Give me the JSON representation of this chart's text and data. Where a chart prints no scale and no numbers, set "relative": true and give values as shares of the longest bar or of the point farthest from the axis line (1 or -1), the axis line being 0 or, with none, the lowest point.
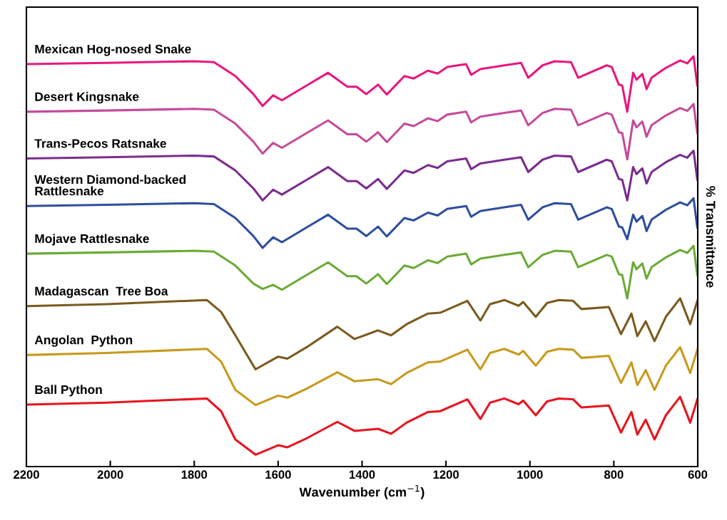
{
  "chart_data": {
    "type": "line",
    "relative": true,
    "xlabel": "Wavenumber (cm$^{−1}$)",
    "y2label": "% Transmittance",
    "xlim": [
      2200,
      600
    ],
    "xticks": [
      2200,
      2000,
      1800,
      1600,
      1400,
      1200,
      1000,
      800,
      600
    ],
    "grid": false,
    "marker": "none",
    "line_style": "solid",
    "series": [
      {
        "name": "Mexican Hog-nosed Snake",
        "color": "#e8177f",
        "x": [
          2200,
          2008,
          1800,
          1753,
          1702,
          1659,
          1637,
          1612,
          1591,
          1532,
          1481,
          1435,
          1413,
          1390,
          1362,
          1341,
          1299,
          1277,
          1243,
          1220,
          1197,
          1152,
          1140,
          1118,
          1061,
          1021,
          1004,
          970,
          941,
          902,
          885,
          817,
          805,
          788,
          780,
          768,
          754,
          746,
          732,
          722,
          710,
          676,
          642,
          625,
          610,
          601
        ],
        "values": [
          0.981,
          0.984,
          0.988,
          0.986,
          0.952,
          0.908,
          0.879,
          0.905,
          0.893,
          0.929,
          0.96,
          0.926,
          0.926,
          0.908,
          0.931,
          0.907,
          0.952,
          0.946,
          0.965,
          0.958,
          0.974,
          0.981,
          0.955,
          0.969,
          0.978,
          0.984,
          0.948,
          0.978,
          0.988,
          0.986,
          0.948,
          0.978,
          0.974,
          0.931,
          0.929,
          0.865,
          0.96,
          0.943,
          0.957,
          0.92,
          0.948,
          0.972,
          0.99,
          0.983,
          1.0,
          0.929
        ]
      },
      {
        "name": "Desert Kingsnake",
        "color": "#c54b9b",
        "x": [
          2200,
          2008,
          1800,
          1753,
          1702,
          1659,
          1637,
          1612,
          1591,
          1532,
          1481,
          1435,
          1413,
          1390,
          1362,
          1341,
          1299,
          1277,
          1243,
          1220,
          1197,
          1152,
          1140,
          1118,
          1061,
          1021,
          1004,
          970,
          941,
          902,
          885,
          817,
          805,
          788,
          780,
          768,
          754,
          746,
          732,
          722,
          710,
          676,
          642,
          625,
          610,
          601
        ],
        "values": [
          0.865,
          0.868,
          0.872,
          0.87,
          0.836,
          0.792,
          0.763,
          0.789,
          0.777,
          0.813,
          0.844,
          0.81,
          0.81,
          0.792,
          0.815,
          0.791,
          0.836,
          0.83,
          0.849,
          0.842,
          0.858,
          0.865,
          0.839,
          0.853,
          0.862,
          0.868,
          0.832,
          0.862,
          0.872,
          0.87,
          0.832,
          0.862,
          0.858,
          0.815,
          0.813,
          0.749,
          0.844,
          0.827,
          0.841,
          0.804,
          0.832,
          0.856,
          0.874,
          0.867,
          0.884,
          0.813
        ]
      },
      {
        "name": "Trans-Pecos Ratsnake",
        "color": "#7b2d8e",
        "x": [
          2200,
          2008,
          1800,
          1753,
          1702,
          1659,
          1637,
          1612,
          1591,
          1532,
          1481,
          1435,
          1413,
          1390,
          1362,
          1341,
          1299,
          1277,
          1243,
          1220,
          1197,
          1152,
          1140,
          1118,
          1061,
          1021,
          1004,
          970,
          941,
          902,
          885,
          817,
          805,
          788,
          780,
          768,
          754,
          746,
          732,
          722,
          710,
          676,
          642,
          625,
          610,
          601
        ],
        "values": [
          0.751,
          0.754,
          0.758,
          0.756,
          0.722,
          0.678,
          0.649,
          0.675,
          0.663,
          0.699,
          0.73,
          0.696,
          0.696,
          0.678,
          0.701,
          0.677,
          0.722,
          0.716,
          0.735,
          0.728,
          0.744,
          0.751,
          0.725,
          0.739,
          0.748,
          0.754,
          0.718,
          0.748,
          0.758,
          0.756,
          0.718,
          0.748,
          0.744,
          0.701,
          0.699,
          0.649,
          0.73,
          0.713,
          0.727,
          0.69,
          0.718,
          0.742,
          0.76,
          0.753,
          0.77,
          0.699
        ]
      },
      {
        "name": "Western Diamond-backed\nRattlesnake",
        "color": "#2e4e9e",
        "x": [
          2200,
          2008,
          1800,
          1753,
          1702,
          1659,
          1637,
          1612,
          1591,
          1532,
          1481,
          1435,
          1413,
          1390,
          1362,
          1341,
          1299,
          1277,
          1243,
          1220,
          1197,
          1152,
          1140,
          1118,
          1061,
          1021,
          1004,
          970,
          941,
          902,
          885,
          817,
          805,
          788,
          780,
          768,
          754,
          746,
          732,
          722,
          710,
          676,
          642,
          625,
          610,
          601
        ],
        "values": [
          0.635,
          0.638,
          0.642,
          0.64,
          0.606,
          0.562,
          0.533,
          0.559,
          0.547,
          0.583,
          0.614,
          0.58,
          0.58,
          0.562,
          0.585,
          0.561,
          0.606,
          0.6,
          0.619,
          0.612,
          0.628,
          0.635,
          0.609,
          0.623,
          0.632,
          0.638,
          0.602,
          0.632,
          0.642,
          0.64,
          0.602,
          0.632,
          0.628,
          0.585,
          0.583,
          0.554,
          0.614,
          0.597,
          0.611,
          0.574,
          0.602,
          0.626,
          0.644,
          0.637,
          0.654,
          0.583
        ]
      },
      {
        "name": "Mojave Rattlesnake",
        "color": "#6aab35",
        "x": [
          2200,
          2008,
          1800,
          1753,
          1702,
          1659,
          1637,
          1612,
          1591,
          1532,
          1481,
          1435,
          1413,
          1390,
          1362,
          1341,
          1299,
          1277,
          1243,
          1220,
          1197,
          1152,
          1140,
          1118,
          1061,
          1021,
          1004,
          970,
          941,
          902,
          885,
          817,
          805,
          788,
          780,
          768,
          754,
          746,
          732,
          722,
          710,
          676,
          642,
          625,
          610,
          601
        ],
        "values": [
          0.519,
          0.522,
          0.526,
          0.524,
          0.49,
          0.446,
          0.433,
          0.443,
          0.431,
          0.467,
          0.498,
          0.464,
          0.464,
          0.446,
          0.469,
          0.445,
          0.49,
          0.484,
          0.503,
          0.496,
          0.512,
          0.519,
          0.493,
          0.507,
          0.516,
          0.522,
          0.486,
          0.516,
          0.526,
          0.524,
          0.486,
          0.516,
          0.512,
          0.469,
          0.467,
          0.41,
          0.498,
          0.481,
          0.495,
          0.458,
          0.486,
          0.51,
          0.528,
          0.521,
          0.538,
          0.467
        ]
      },
      {
        "name": "Madagascan  Tree Boa",
        "color": "#7b5a1e",
        "x": [
          2200,
          2008,
          1770,
          1736,
          1702,
          1654,
          1600,
          1578,
          1532,
          1459,
          1418,
          1362,
          1331,
          1294,
          1243,
          1214,
          1149,
          1118,
          1095,
          1061,
          1027,
          1016,
          986,
          959,
          931,
          897,
          877,
          812,
          783,
          758,
          744,
          724,
          703,
          676,
          642,
          618,
          601
        ],
        "values": [
          0.391,
          0.396,
          0.406,
          0.377,
          0.32,
          0.237,
          0.268,
          0.263,
          0.291,
          0.341,
          0.311,
          0.332,
          0.32,
          0.347,
          0.373,
          0.375,
          0.404,
          0.356,
          0.396,
          0.406,
          0.392,
          0.401,
          0.365,
          0.399,
          0.406,
          0.404,
          0.384,
          0.389,
          0.323,
          0.373,
          0.318,
          0.354,
          0.306,
          0.365,
          0.41,
          0.347,
          0.404
        ]
      },
      {
        "name": "Angolan  Python",
        "color": "#c89a1c",
        "x": [
          2200,
          2008,
          1770,
          1736,
          1702,
          1654,
          1600,
          1578,
          1532,
          1459,
          1418,
          1362,
          1331,
          1294,
          1243,
          1214,
          1149,
          1118,
          1095,
          1061,
          1027,
          1016,
          986,
          959,
          931,
          897,
          877,
          812,
          783,
          758,
          744,
          724,
          703,
          676,
          642,
          618,
          601
        ],
        "values": [
          0.272,
          0.277,
          0.287,
          0.256,
          0.187,
          0.15,
          0.173,
          0.168,
          0.19,
          0.23,
          0.208,
          0.213,
          0.201,
          0.228,
          0.254,
          0.256,
          0.285,
          0.237,
          0.277,
          0.287,
          0.273,
          0.282,
          0.246,
          0.28,
          0.287,
          0.285,
          0.265,
          0.27,
          0.204,
          0.254,
          0.199,
          0.235,
          0.187,
          0.246,
          0.291,
          0.228,
          0.285
        ]
      },
      {
        "name": "Ball Python",
        "color": "#e8141e",
        "x": [
          2200,
          2008,
          1770,
          1736,
          1702,
          1654,
          1600,
          1578,
          1532,
          1459,
          1418,
          1362,
          1331,
          1294,
          1243,
          1214,
          1149,
          1118,
          1095,
          1061,
          1027,
          1016,
          986,
          959,
          931,
          897,
          877,
          812,
          783,
          758,
          744,
          724,
          703,
          676,
          642,
          618,
          601
        ],
        "values": [
          0.151,
          0.156,
          0.166,
          0.135,
          0.066,
          0.029,
          0.052,
          0.047,
          0.069,
          0.109,
          0.087,
          0.092,
          0.08,
          0.107,
          0.133,
          0.135,
          0.164,
          0.116,
          0.156,
          0.166,
          0.152,
          0.161,
          0.125,
          0.159,
          0.166,
          0.164,
          0.144,
          0.149,
          0.083,
          0.133,
          0.078,
          0.114,
          0.066,
          0.125,
          0.17,
          0.107,
          0.164
        ]
      }
    ]
  }
}
